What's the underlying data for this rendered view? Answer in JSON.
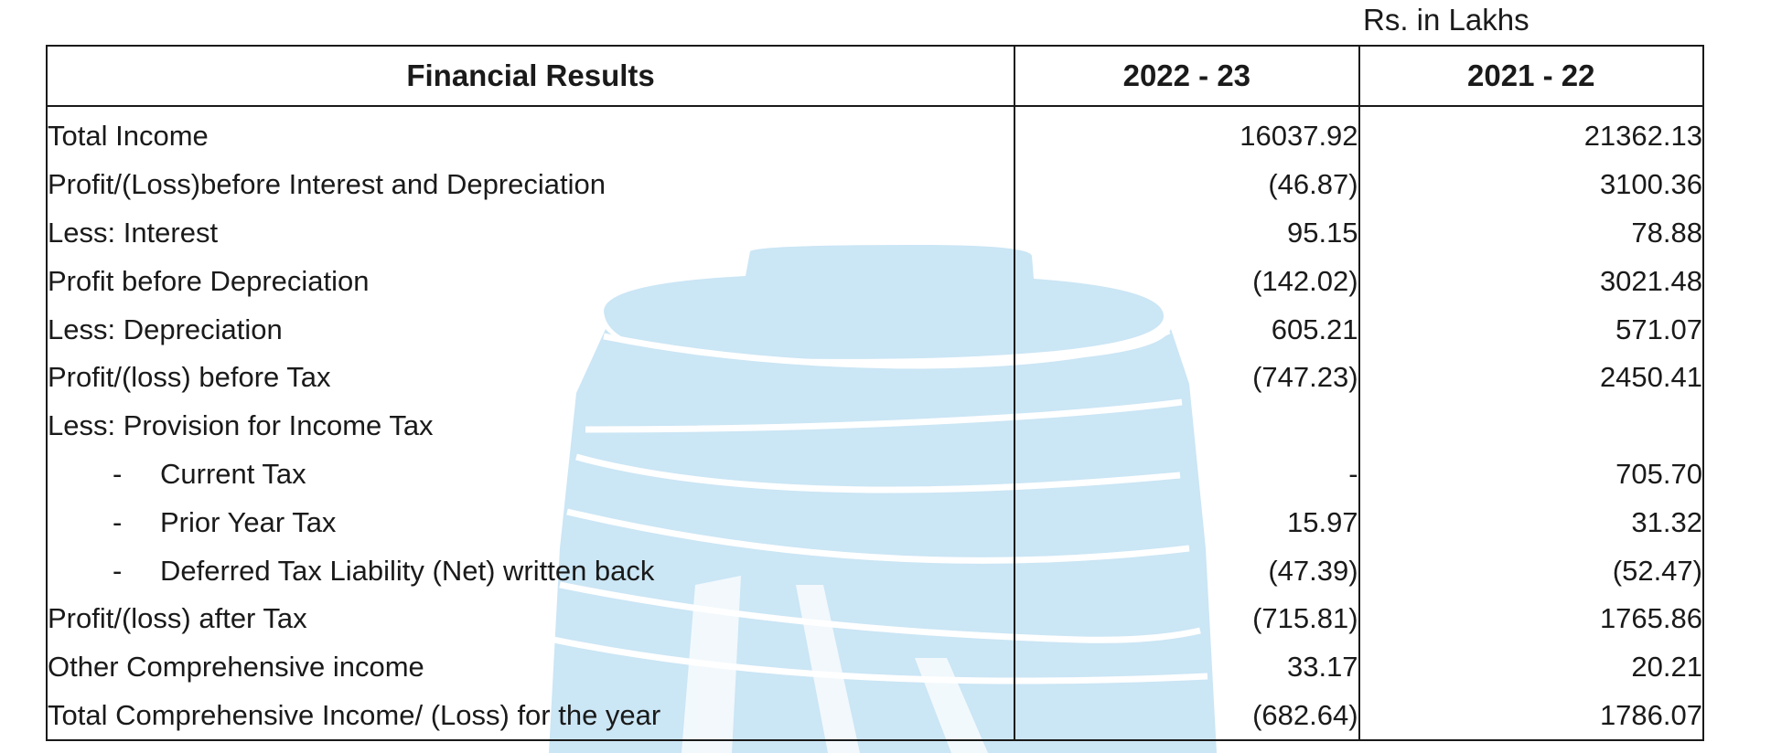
{
  "unit_note": "Rs. in Lakhs",
  "table": {
    "headers": [
      "Financial Results",
      "2022 - 23",
      "2021 - 22"
    ],
    "rows": [
      {
        "label": "Total Income",
        "sub": false,
        "cur": "16037.92",
        "prev": "21362.13"
      },
      {
        "label": "Profit/(Loss)before Interest and Depreciation",
        "sub": false,
        "cur": "(46.87)",
        "prev": "3100.36"
      },
      {
        "label": "Less: Interest",
        "sub": false,
        "cur": "95.15",
        "prev": "78.88"
      },
      {
        "label": "Profit before Depreciation",
        "sub": false,
        "cur": "(142.02)",
        "prev": "3021.48"
      },
      {
        "label": "Less: Depreciation",
        "sub": false,
        "cur": "605.21",
        "prev": "571.07"
      },
      {
        "label": "Profit/(loss) before Tax",
        "sub": false,
        "cur": "(747.23)",
        "prev": "2450.41"
      },
      {
        "label": "Less: Provision for Income Tax",
        "sub": false,
        "cur": "",
        "prev": ""
      },
      {
        "label": "Current Tax",
        "sub": true,
        "cur": "-",
        "prev": "705.70"
      },
      {
        "label": "Prior Year Tax",
        "sub": true,
        "cur": "15.97",
        "prev": "31.32"
      },
      {
        "label": "Deferred Tax Liability (Net) written back",
        "sub": true,
        "cur": "(47.39)",
        "prev": "(52.47)"
      },
      {
        "label": "Profit/(loss) after Tax",
        "sub": false,
        "cur": "(715.81)",
        "prev": "1765.86"
      },
      {
        "label": "Other Comprehensive income",
        "sub": false,
        "cur": "33.17",
        "prev": "20.21"
      },
      {
        "label": "Total Comprehensive Income/ (Loss) for the year",
        "sub": false,
        "cur": "(682.64)",
        "prev": "1786.07"
      }
    ]
  },
  "colors": {
    "watermark": "#cbe6f5",
    "border": "#1a1a1a",
    "text": "#1a1a1a"
  },
  "icons": {
    "watermark": "company-logo-watermark"
  }
}
